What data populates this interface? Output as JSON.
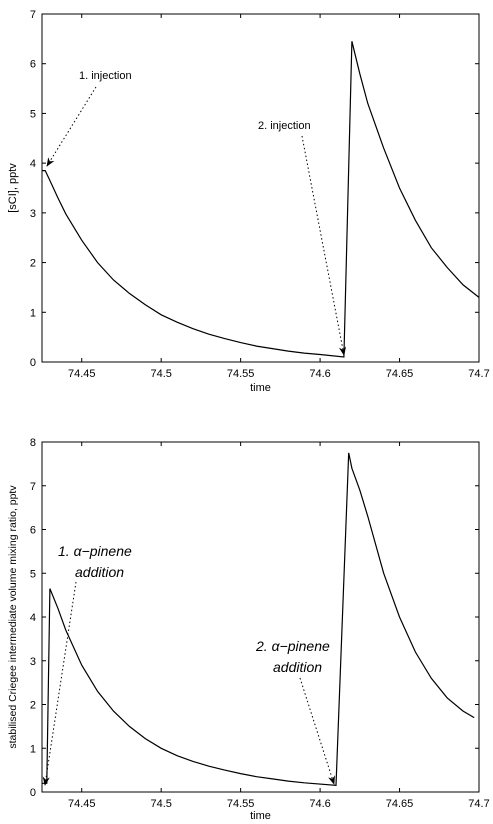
{
  "chart_data": [
    {
      "type": "line",
      "xlabel": "time",
      "ylabel": "[sCI], pptv",
      "xlim": [
        74.425,
        74.7
      ],
      "ylim": [
        0,
        7
      ],
      "xticks": [
        {
          "v": 74.45,
          "label": "74.45"
        },
        {
          "v": 74.5,
          "label": "74.5"
        },
        {
          "v": 74.55,
          "label": "74.55"
        },
        {
          "v": 74.6,
          "label": "74.6"
        },
        {
          "v": 74.65,
          "label": "74.65"
        },
        {
          "v": 74.7,
          "label": "74.7"
        }
      ],
      "yticks": [
        {
          "v": 0,
          "label": "0"
        },
        {
          "v": 1,
          "label": "1"
        },
        {
          "v": 2,
          "label": "2"
        },
        {
          "v": 3,
          "label": "3"
        },
        {
          "v": 4,
          "label": "4"
        },
        {
          "v": 5,
          "label": "5"
        },
        {
          "v": 6,
          "label": "6"
        },
        {
          "v": 7,
          "label": "7"
        }
      ],
      "series": [
        {
          "x": [
            74.425,
            74.427,
            74.43,
            74.435,
            74.44,
            74.45,
            74.46,
            74.47,
            74.48,
            74.49,
            74.5,
            74.51,
            74.52,
            74.53,
            74.54,
            74.55,
            74.56,
            74.57,
            74.58,
            74.59,
            74.6,
            74.615,
            74.62,
            74.625,
            74.63,
            74.64,
            74.65,
            74.66,
            74.67,
            74.68,
            74.69,
            74.7
          ],
          "y": [
            3.85,
            3.85,
            3.65,
            3.3,
            2.98,
            2.45,
            2.0,
            1.65,
            1.38,
            1.15,
            0.95,
            0.8,
            0.67,
            0.56,
            0.47,
            0.39,
            0.32,
            0.27,
            0.22,
            0.18,
            0.15,
            0.1,
            6.45,
            5.8,
            5.2,
            4.3,
            3.5,
            2.85,
            2.3,
            1.9,
            1.55,
            1.3
          ]
        }
      ],
      "annotations": [
        {
          "text": "1. injection",
          "arrow_to": [
            74.427,
            3.85
          ]
        },
        {
          "text": "2. injection",
          "arrow_to": [
            74.615,
            0.1
          ]
        }
      ]
    },
    {
      "type": "line",
      "xlabel": "time",
      "ylabel": "stabilised Criegee intermediate volume mixing ratio, pptv",
      "xlim": [
        74.425,
        74.7
      ],
      "ylim": [
        0,
        8
      ],
      "xticks": [
        {
          "v": 74.45,
          "label": "74.45"
        },
        {
          "v": 74.5,
          "label": "74.5"
        },
        {
          "v": 74.55,
          "label": "74.55"
        },
        {
          "v": 74.6,
          "label": "74.6"
        },
        {
          "v": 74.65,
          "label": "74.65"
        },
        {
          "v": 74.7,
          "label": "74.7"
        }
      ],
      "yticks": [
        {
          "v": 0,
          "label": "0"
        },
        {
          "v": 1,
          "label": "1"
        },
        {
          "v": 2,
          "label": "2"
        },
        {
          "v": 3,
          "label": "3"
        },
        {
          "v": 4,
          "label": "4"
        },
        {
          "v": 5,
          "label": "5"
        },
        {
          "v": 6,
          "label": "6"
        },
        {
          "v": 7,
          "label": "7"
        },
        {
          "v": 8,
          "label": "8"
        }
      ],
      "series": [
        {
          "x": [
            74.425,
            74.428,
            74.43,
            74.435,
            74.44,
            74.45,
            74.46,
            74.47,
            74.48,
            74.49,
            74.5,
            74.51,
            74.52,
            74.53,
            74.54,
            74.55,
            74.56,
            74.57,
            74.58,
            74.59,
            74.61,
            74.618,
            74.62,
            74.625,
            74.63,
            74.64,
            74.65,
            74.66,
            74.67,
            74.68,
            74.69,
            74.697
          ],
          "y": [
            0.2,
            0.2,
            4.65,
            4.2,
            3.7,
            2.9,
            2.3,
            1.85,
            1.5,
            1.22,
            1.0,
            0.83,
            0.7,
            0.59,
            0.5,
            0.42,
            0.35,
            0.3,
            0.25,
            0.21,
            0.15,
            7.75,
            7.4,
            6.9,
            6.3,
            5.0,
            4.0,
            3.2,
            2.6,
            2.15,
            1.85,
            1.7
          ]
        }
      ],
      "annotations": [
        {
          "line1": "1. α−pinene",
          "line2": "addition",
          "arrow_to": [
            74.426,
            0.15
          ]
        },
        {
          "line1": "2. α−pinene",
          "line2": "addition",
          "arrow_to": [
            74.61,
            0.12
          ]
        }
      ]
    }
  ]
}
